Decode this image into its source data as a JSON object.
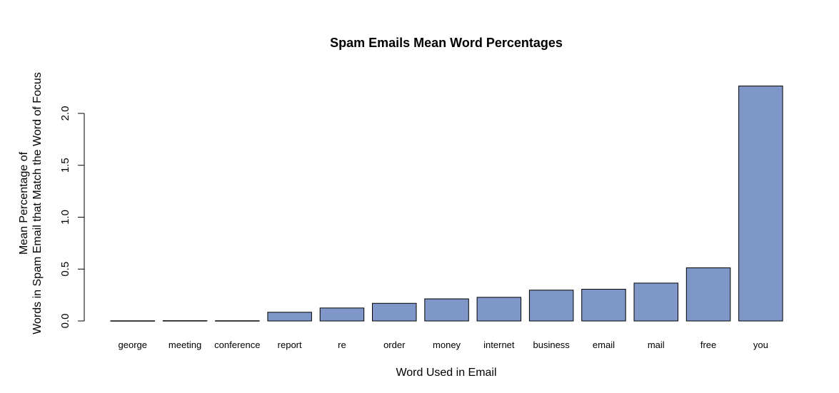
{
  "chart_data": {
    "type": "bar",
    "title": "Spam Emails Mean Word Percentages",
    "xlabel": "Word Used in Email",
    "ylabel": [
      "Mean Percentage of",
      "Words in Spam Email that Match the Word of Focus"
    ],
    "categories": [
      "george",
      "meeting",
      "conference",
      "report",
      "re",
      "order",
      "money",
      "internet",
      "business",
      "email",
      "mail",
      "free",
      "you"
    ],
    "values": [
      0.0016,
      0.0027,
      0.0021,
      0.084,
      0.125,
      0.17,
      0.213,
      0.228,
      0.297,
      0.306,
      0.365,
      0.512,
      2.264
    ],
    "ylim": [
      0,
      2.3
    ],
    "yticks": [
      "0.0",
      "0.5",
      "1.0",
      "1.5",
      "2.0"
    ],
    "bar_color": "#7f96c8",
    "grid": false,
    "legend": "none"
  }
}
